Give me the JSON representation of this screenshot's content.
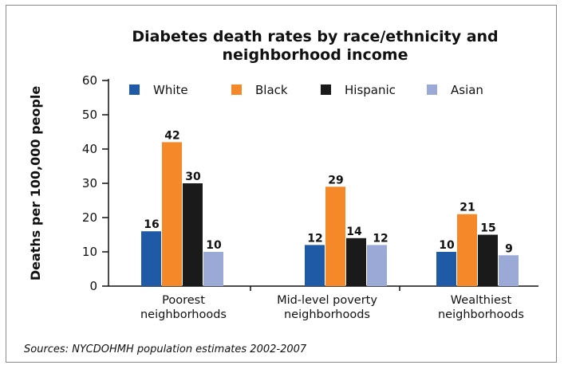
{
  "chart_data": {
    "type": "bar",
    "title_lines": [
      "Diabetes death rates by race/ethnicity and",
      "neighborhood income"
    ],
    "ylabel": "Deaths per 100,000 people",
    "xlabel": "",
    "ylim": [
      0,
      60
    ],
    "yticks": [
      0,
      10,
      20,
      30,
      40,
      50,
      60
    ],
    "categories": [
      [
        "Poorest",
        "neighborhoods"
      ],
      [
        "Mid-level poverty",
        "neighborhoods"
      ],
      [
        "Wealthiest",
        "neighborhoods"
      ]
    ],
    "series": [
      {
        "name": "White",
        "color": "#1f5aa6",
        "values": [
          16,
          12,
          10
        ]
      },
      {
        "name": "Black",
        "color": "#f5892a",
        "values": [
          42,
          29,
          21
        ]
      },
      {
        "name": "Hispanic",
        "color": "#1a1a1a",
        "values": [
          30,
          14,
          15
        ]
      },
      {
        "name": "Asian",
        "color": "#9aa9d6",
        "values": [
          10,
          12,
          9
        ]
      }
    ],
    "legend_position": "top",
    "grid": false,
    "source": "Sources: NYCDOHMH population estimates 2002-2007"
  }
}
